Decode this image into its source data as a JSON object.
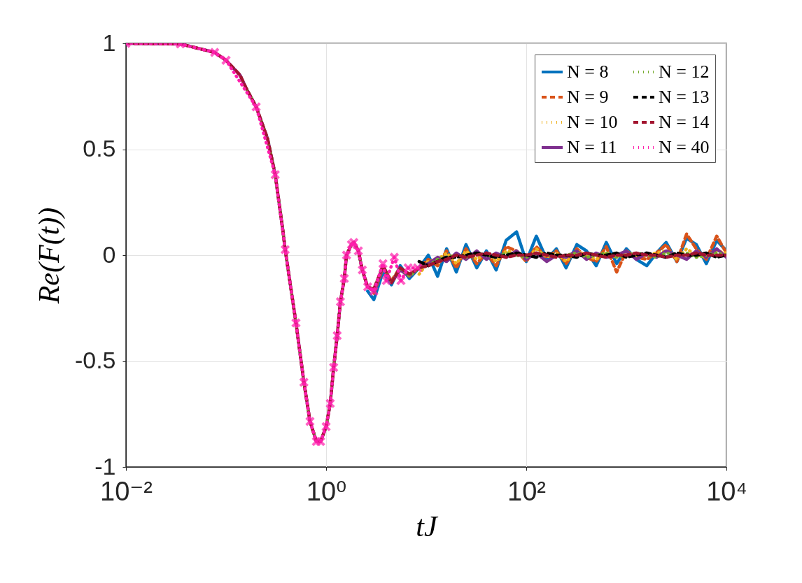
{
  "chart_data": {
    "type": "line",
    "xlabel": "tJ",
    "ylabel": "Re(F(t))",
    "log": "x",
    "grid": true,
    "legend": "top right",
    "xlim": [
      0.01,
      10000
    ],
    "ylim": [
      -1,
      1
    ],
    "xticks": [
      {
        "value": 0.01,
        "label": "10⁻²"
      },
      {
        "value": 1,
        "label": "10⁰"
      },
      {
        "value": 100,
        "label": "10²"
      },
      {
        "value": 10000,
        "label": "10⁴"
      }
    ],
    "yticks": [
      -1,
      -0.5,
      0,
      0.5,
      1
    ],
    "x": [
      0.01,
      0.035,
      0.077,
      0.1,
      0.138,
      0.16,
      0.2,
      0.26,
      0.31,
      0.37,
      0.39,
      0.5,
      0.6,
      0.69,
      0.8,
      0.88,
      1.0,
      1.1,
      1.19,
      1.29,
      1.39,
      1.52,
      1.6,
      1.79,
      1.89,
      2.1,
      2.3,
      2.6,
      3,
      3.7,
      4.5,
      5.5,
      6.8,
      8.5,
      10.5,
      13,
      16,
      20,
      25,
      32,
      40,
      50,
      63,
      80,
      100,
      126,
      160,
      200,
      250,
      320,
      400,
      500,
      630,
      800,
      1000,
      1260,
      1600,
      2000,
      2500,
      3200,
      4000,
      5000,
      6300,
      8000,
      10000
    ],
    "series": [
      {
        "name": "N = 8",
        "color": "#0072bd",
        "line_style": "solid",
        "values": [
          null,
          null,
          null,
          null,
          null,
          null,
          null,
          null,
          null,
          null,
          null,
          null,
          null,
          null,
          null,
          null,
          null,
          null,
          null,
          null,
          null,
          null,
          null,
          null,
          null,
          null,
          null,
          -0.17,
          -0.21,
          -0.08,
          -0.14,
          -0.05,
          -0.11,
          -0.06,
          0.0,
          -0.1,
          0.03,
          -0.08,
          0.05,
          -0.06,
          0.02,
          -0.07,
          0.07,
          0.11,
          -0.03,
          0.09,
          -0.02,
          0.03,
          -0.06,
          0.05,
          0.02,
          -0.05,
          0.06,
          -0.04,
          0.03,
          -0.02,
          -0.05,
          0.01,
          0.06,
          -0.03,
          0.08,
          0.05,
          -0.04,
          0.07,
          0.02
        ]
      },
      {
        "name": "N = 9",
        "color": "#d95319",
        "line_style": "dashed",
        "values": [
          null,
          null,
          null,
          null,
          null,
          null,
          null,
          null,
          null,
          null,
          null,
          null,
          null,
          null,
          null,
          null,
          null,
          null,
          null,
          null,
          null,
          null,
          null,
          null,
          null,
          null,
          null,
          null,
          -0.18,
          -0.06,
          -0.12,
          -0.06,
          -0.09,
          -0.06,
          -0.02,
          -0.05,
          0.02,
          -0.06,
          0.03,
          -0.04,
          0.01,
          -0.05,
          0.04,
          0.02,
          -0.03,
          0.04,
          -0.01,
          0.02,
          -0.04,
          0.03,
          -0.01,
          -0.03,
          0.04,
          -0.08,
          0.02,
          -0.01,
          -0.02,
          0.01,
          0.05,
          -0.03,
          0.1,
          0.03,
          -0.02,
          0.09,
          0.01
        ]
      },
      {
        "name": "N = 10",
        "color": "#edb120",
        "line_style": "dotted",
        "values": [
          null,
          null,
          null,
          null,
          null,
          null,
          null,
          null,
          null,
          null,
          null,
          null,
          null,
          null,
          null,
          null,
          null,
          null,
          null,
          null,
          null,
          null,
          null,
          null,
          null,
          null,
          null,
          null,
          null,
          null,
          null,
          null,
          null,
          -0.09,
          -0.03,
          -0.02,
          0.01,
          -0.04,
          0.02,
          -0.02,
          0.01,
          -0.03,
          0.02,
          0.01,
          -0.02,
          0.03,
          -0.01,
          0.01,
          -0.03,
          0.02,
          0.0,
          -0.02,
          0.01,
          -0.01,
          0.02,
          -0.01,
          0.0,
          0.01,
          0.02,
          -0.02,
          0.03,
          0.0,
          -0.01,
          0.02,
          0.01
        ]
      },
      {
        "name": "N = 11",
        "color": "#7e2f8e",
        "line_style": "solid",
        "values": [
          1.0,
          0.997,
          0.957,
          0.92,
          0.85,
          0.785,
          0.7,
          0.55,
          0.38,
          0.115,
          0.026,
          -0.32,
          -0.6,
          -0.785,
          -0.88,
          -0.88,
          -0.81,
          -0.7,
          -0.53,
          -0.38,
          -0.22,
          -0.11,
          0.0,
          0.05,
          0.06,
          0.02,
          -0.07,
          -0.15,
          -0.17,
          -0.05,
          -0.13,
          -0.07,
          -0.1,
          -0.06,
          -0.04,
          -0.01,
          -0.03,
          0.01,
          -0.02,
          0.02,
          -0.02,
          0.01,
          -0.01,
          0.02,
          -0.02,
          0.01,
          -0.03,
          0.0,
          -0.01,
          0.02,
          -0.02,
          0.01,
          -0.01,
          0.0,
          0.02,
          -0.02,
          0.01,
          -0.01,
          0.02,
          0.0,
          -0.02,
          0.02,
          -0.01,
          0.03,
          -0.01
        ]
      },
      {
        "name": "N = 12",
        "color": "#77ac30",
        "line_style": "dotted",
        "values": [
          null,
          null,
          null,
          null,
          null,
          0.785,
          0.7,
          0.55,
          0.38,
          0.115,
          0.026,
          -0.32,
          -0.6,
          -0.785,
          -0.88,
          -0.88,
          -0.81,
          -0.7,
          -0.53,
          -0.38,
          -0.22,
          -0.11,
          0.0,
          0.05,
          0.06,
          0.02,
          -0.07,
          -0.15,
          -0.16,
          -0.05,
          -0.13,
          -0.06,
          -0.1,
          -0.06,
          -0.05,
          -0.02,
          -0.01,
          0.0,
          -0.01,
          0.01,
          0.0,
          -0.01,
          0.01,
          0.0,
          -0.01,
          0.01,
          0.0,
          -0.01,
          0.0,
          0.01,
          -0.01,
          0.0,
          0.01,
          -0.01,
          0.0,
          0.01,
          0.0,
          -0.01,
          0.01,
          0.0,
          0.01,
          -0.01,
          0.0,
          0.01,
          0.0
        ]
      },
      {
        "name": "N = 13",
        "color": "#000000",
        "line_style": "dashed",
        "values": [
          null,
          null,
          null,
          null,
          null,
          null,
          null,
          null,
          null,
          null,
          null,
          null,
          null,
          null,
          null,
          null,
          null,
          null,
          null,
          null,
          null,
          null,
          null,
          null,
          null,
          null,
          null,
          null,
          null,
          null,
          null,
          null,
          null,
          -0.03,
          -0.05,
          -0.03,
          -0.01,
          -0.01,
          0.0,
          0.01,
          0.0,
          -0.01,
          0.0,
          0.01,
          0.0,
          -0.01,
          0.01,
          0.0,
          0.0,
          -0.01,
          0.01,
          0.0,
          0.0,
          0.01,
          -0.01,
          0.0,
          0.01,
          0.0,
          -0.01,
          0.01,
          0.0,
          0.0,
          0.01,
          -0.01,
          0.0
        ]
      },
      {
        "name": "N = 14",
        "color": "#a2142f",
        "line_style": "dashed",
        "values": [
          1.0,
          0.997,
          0.957,
          0.92,
          0.85,
          0.785,
          0.7,
          0.55,
          0.38,
          0.115,
          0.026,
          -0.32,
          -0.6,
          -0.785,
          -0.88,
          -0.88,
          -0.81,
          -0.7,
          -0.53,
          -0.38,
          -0.22,
          -0.11,
          0.0,
          0.05,
          0.06,
          0.02,
          -0.07,
          -0.15,
          -0.16,
          -0.05,
          -0.13,
          -0.06,
          -0.09,
          -0.06,
          -0.05,
          -0.03,
          -0.02,
          0.0,
          -0.01,
          0.0,
          0.01,
          0.0,
          -0.01,
          0.0,
          0.0,
          0.01,
          0.0,
          -0.01,
          0.0,
          0.0,
          0.01,
          0.0,
          -0.01,
          0.0,
          0.0,
          0.01,
          0.0,
          0.0,
          -0.01,
          0.0,
          0.0,
          0.01,
          0.0,
          0.0,
          0.0
        ]
      },
      {
        "name": "N = 40",
        "color": "#ff1dac",
        "line_style": "dotted",
        "marker": "cross",
        "x": [
          0.01,
          0.035,
          0.077,
          0.1,
          0.2,
          0.31,
          0.39,
          0.5,
          0.6,
          0.69,
          0.8,
          0.88,
          1.0,
          1.1,
          1.19,
          1.29,
          1.39,
          1.52,
          1.6,
          1.79,
          1.89,
          2.1,
          2.3,
          2.6,
          3.0,
          3.7,
          4.0,
          4.8,
          5.6,
          6.6,
          8.2
        ],
        "values": [
          1.0,
          0.997,
          0.957,
          0.92,
          0.7,
          0.38,
          0.026,
          -0.32,
          -0.6,
          -0.785,
          -0.88,
          -0.88,
          -0.81,
          -0.7,
          -0.53,
          -0.38,
          -0.22,
          -0.11,
          0.0,
          0.05,
          0.06,
          0.02,
          -0.07,
          -0.15,
          -0.17,
          -0.04,
          -0.12,
          -0.01,
          -0.12,
          -0.06,
          -0.06
        ]
      }
    ]
  }
}
